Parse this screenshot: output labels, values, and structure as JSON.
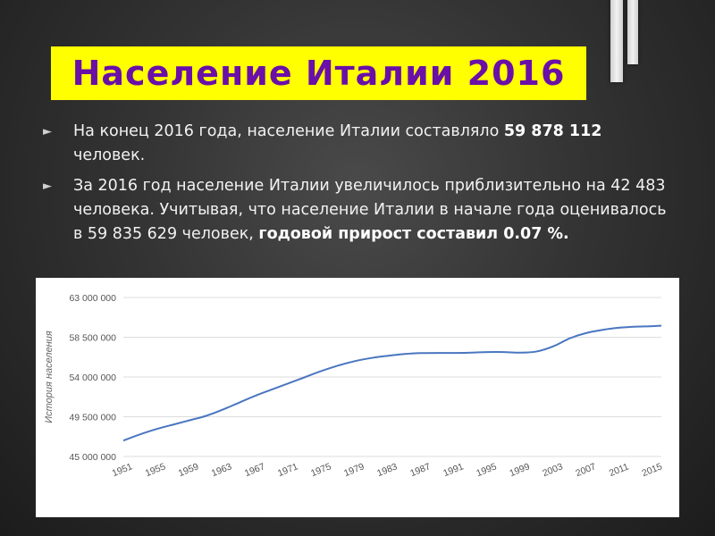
{
  "slide": {
    "title": "Население Италии 2016",
    "bullets": [
      {
        "marker": "►",
        "parts": [
          {
            "text": "На конец 2016 года, население Италии составляло ",
            "bold": false
          },
          {
            "text": "59 878 112",
            "bold": true
          },
          {
            "text": " человек.",
            "bold": false
          }
        ]
      },
      {
        "marker": "►",
        "parts": [
          {
            "text": "За 2016 год население Италии увеличилось приблизительно на 42 483 человека. Учитывая, что население Италии в начале года оценивалось в 59 835 629 человек, ",
            "bold": false
          },
          {
            "text": "годовой прирост составил 0.07 %.",
            "bold": true
          }
        ]
      }
    ]
  },
  "colors": {
    "title_bg": "#ffff00",
    "title_text": "#6a0fa8",
    "line": "#4a76c0",
    "grid": "#dddddd"
  },
  "chart_data": {
    "type": "line",
    "title": "",
    "xlabel": "",
    "ylabel": "История населения",
    "ylim": [
      45000000,
      63000000
    ],
    "xlim": [
      1951,
      2016
    ],
    "y_ticks": [
      45000000,
      49500000,
      54000000,
      58500000,
      63000000
    ],
    "y_tick_labels": [
      "45 000 000",
      "49 500 000",
      "54 000 000",
      "58 500 000",
      "63 000 000"
    ],
    "x_ticks": [
      1951,
      1955,
      1959,
      1963,
      1967,
      1971,
      1975,
      1979,
      1983,
      1987,
      1991,
      1995,
      1999,
      2003,
      2007,
      2011,
      2015
    ],
    "x_tick_labels": [
      "1951",
      "1955",
      "1959",
      "1963",
      "1967",
      "1971",
      "1975",
      "1979",
      "1983",
      "1987",
      "1991",
      "1995",
      "1999",
      "2003",
      "2007",
      "2011",
      "2015"
    ],
    "grid": true,
    "series": [
      {
        "name": "",
        "x": [
          1951,
          1953,
          1955,
          1957,
          1959,
          1961,
          1963,
          1965,
          1967,
          1969,
          1971,
          1973,
          1975,
          1977,
          1979,
          1981,
          1983,
          1985,
          1987,
          1989,
          1991,
          1993,
          1995,
          1997,
          1999,
          2001,
          2003,
          2005,
          2007,
          2009,
          2011,
          2013,
          2015,
          2016
        ],
        "values": [
          46800000,
          47500000,
          48100000,
          48600000,
          49100000,
          49600000,
          50300000,
          51100000,
          51900000,
          52600000,
          53300000,
          54000000,
          54700000,
          55300000,
          55800000,
          56150000,
          56400000,
          56600000,
          56700000,
          56720000,
          56720000,
          56760000,
          56820000,
          56820000,
          56750000,
          56900000,
          57500000,
          58400000,
          59000000,
          59350000,
          59580000,
          59700000,
          59750000,
          59800000
        ]
      }
    ]
  }
}
